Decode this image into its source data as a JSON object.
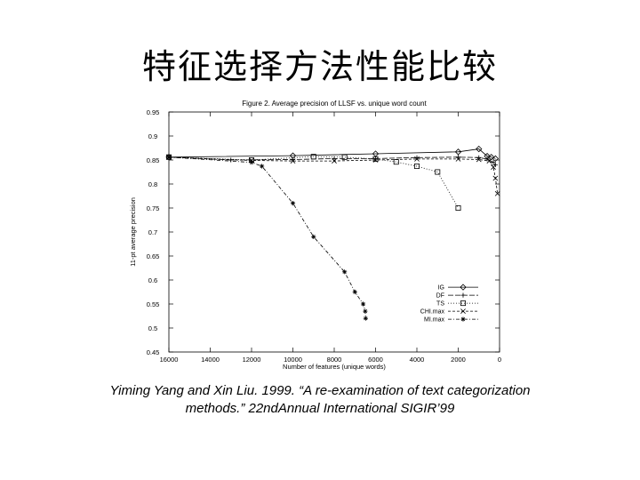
{
  "slide": {
    "title": "特征选择方法性能比较",
    "caption_line1": "Yiming Yang and Xin Liu. 1999. “A re-examination of text categorization",
    "caption_line2": "methods.” 22ndAnnual International SIGIR’99"
  },
  "chart_data": {
    "type": "line",
    "title": "Figure 2. Average precision of LLSF vs. unique word count",
    "xlabel": "Number of features (unique words)",
    "ylabel": "11-pt average precision",
    "xlim": [
      16000,
      0
    ],
    "ylim": [
      0.45,
      0.95
    ],
    "x_ticks": [
      "16000",
      "14000",
      "12000",
      "10000",
      "8000",
      "6000",
      "4000",
      "2000",
      "0"
    ],
    "y_ticks": [
      "0.45",
      "0.5",
      "0.55",
      "0.6",
      "0.65",
      "0.7",
      "0.75",
      "0.8",
      "0.85",
      "0.9",
      "0.95"
    ],
    "grid": false,
    "legend_position": "bottom-right",
    "series": [
      {
        "name": "IG",
        "marker": "diamond",
        "dash": "none",
        "x": [
          16000,
          10000,
          6000,
          2000,
          1000,
          600,
          400,
          200
        ],
        "y": [
          0.856,
          0.859,
          0.863,
          0.867,
          0.873,
          0.858,
          0.856,
          0.853
        ]
      },
      {
        "name": "DF",
        "marker": "plus",
        "dash": "long",
        "x": [
          16000,
          13000,
          10000,
          8000,
          6000,
          4000,
          2000,
          1000,
          600,
          300,
          200
        ],
        "y": [
          0.856,
          0.85,
          0.851,
          0.853,
          0.853,
          0.855,
          0.856,
          0.855,
          0.852,
          0.845,
          0.84
        ]
      },
      {
        "name": "TS",
        "marker": "square",
        "dash": "dot",
        "x": [
          16000,
          12000,
          9000,
          7500,
          6000,
          5000,
          4000,
          3000,
          2000
        ],
        "y": [
          0.856,
          0.85,
          0.857,
          0.856,
          0.852,
          0.846,
          0.837,
          0.825,
          0.75
        ]
      },
      {
        "name": "CHI.max",
        "marker": "cross",
        "dash": "dash",
        "x": [
          16000,
          12000,
          10000,
          8000,
          6000,
          4000,
          2000,
          1000,
          500,
          300,
          200,
          100
        ],
        "y": [
          0.856,
          0.849,
          0.848,
          0.848,
          0.85,
          0.852,
          0.852,
          0.851,
          0.848,
          0.835,
          0.812,
          0.78
        ]
      },
      {
        "name": "MI.max",
        "marker": "star",
        "dash": "dashdot",
        "x": [
          16000,
          12000,
          11500,
          10000,
          9000,
          7500,
          7000,
          6600,
          6500,
          6480
        ],
        "y": [
          0.856,
          0.845,
          0.837,
          0.76,
          0.69,
          0.617,
          0.575,
          0.55,
          0.535,
          0.52
        ]
      }
    ]
  }
}
